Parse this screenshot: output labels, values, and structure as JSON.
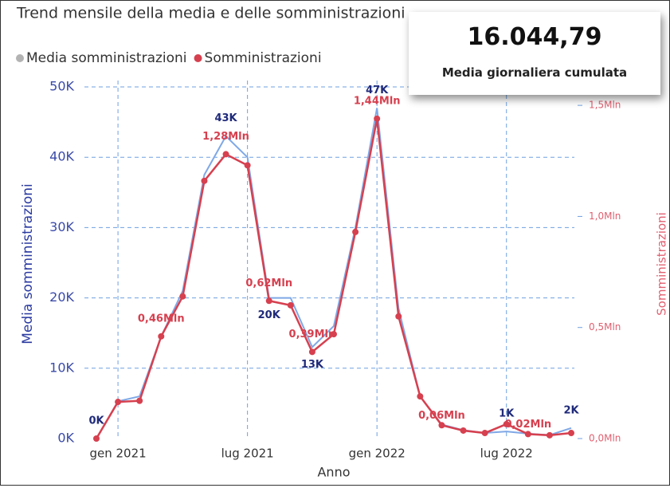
{
  "chart_data": {
    "type": "line",
    "title": "Trend mensile della media e delle somministrazioni",
    "x_label": "Anno",
    "y_label": "Media somministrazioni",
    "y2_label": "Somministrazioni",
    "categories": [
      null,
      "gen 2021",
      null,
      null,
      null,
      null,
      null,
      "lug 2021",
      null,
      null,
      null,
      null,
      null,
      "gen 2022",
      null,
      null,
      null,
      null,
      null,
      "lug 2022",
      null,
      null,
      null
    ],
    "series": [
      {
        "name": "Media somministrazioni",
        "color": "#7fa8e6",
        "legend_color": "#b3b3b3",
        "values": [
          0,
          5300,
          6000,
          14500,
          21000,
          37500,
          43000,
          40000,
          20000,
          20000,
          13000,
          16000,
          30000,
          47000,
          18500,
          6000,
          2000,
          1200,
          800,
          1000,
          700,
          500,
          1500
        ],
        "value_labels": [
          "0K",
          null,
          null,
          null,
          null,
          null,
          "43K",
          null,
          "20K",
          null,
          "13K",
          null,
          null,
          "47K",
          null,
          null,
          null,
          null,
          null,
          "1K",
          null,
          null,
          "2K"
        ]
      },
      {
        "name": "Somministrazioni",
        "color": "#d6404f",
        "axis": "y2",
        "values": [
          0,
          165000,
          170000,
          460000,
          640000,
          1160000,
          1280000,
          1230000,
          620000,
          600000,
          390000,
          470000,
          930000,
          1440000,
          550000,
          190000,
          60000,
          36000,
          25000,
          65000,
          20000,
          15000,
          25000
        ],
        "value_labels": [
          null,
          null,
          null,
          "0,46Mln",
          null,
          null,
          "1,28Mln",
          null,
          "0,62Mln",
          null,
          "0,39Mln",
          null,
          null,
          "1,44Mln",
          null,
          null,
          "0,06Mln",
          null,
          null,
          null,
          "0,02Mln",
          null,
          null
        ]
      }
    ],
    "ylim": [
      0,
      50000
    ],
    "yticks": [
      {
        "value": 0,
        "label": "0K"
      },
      {
        "value": 10000,
        "label": "10K"
      },
      {
        "value": 20000,
        "label": "20K"
      },
      {
        "value": 30000,
        "label": "30K"
      },
      {
        "value": 40000,
        "label": "40K"
      },
      {
        "value": 50000,
        "label": "50K"
      }
    ],
    "y2lim": [
      0,
      1583000
    ],
    "y2ticks": [
      {
        "value": 0,
        "label": "0,0Mln"
      },
      {
        "value": 500000,
        "label": "0,5Mln"
      },
      {
        "value": 1000000,
        "label": "1,0Mln"
      },
      {
        "value": 1500000,
        "label": "1,5Mln"
      }
    ],
    "grid": true
  },
  "kpi": {
    "value": "16.044,79",
    "label": "Media giornaliera cumulata"
  }
}
